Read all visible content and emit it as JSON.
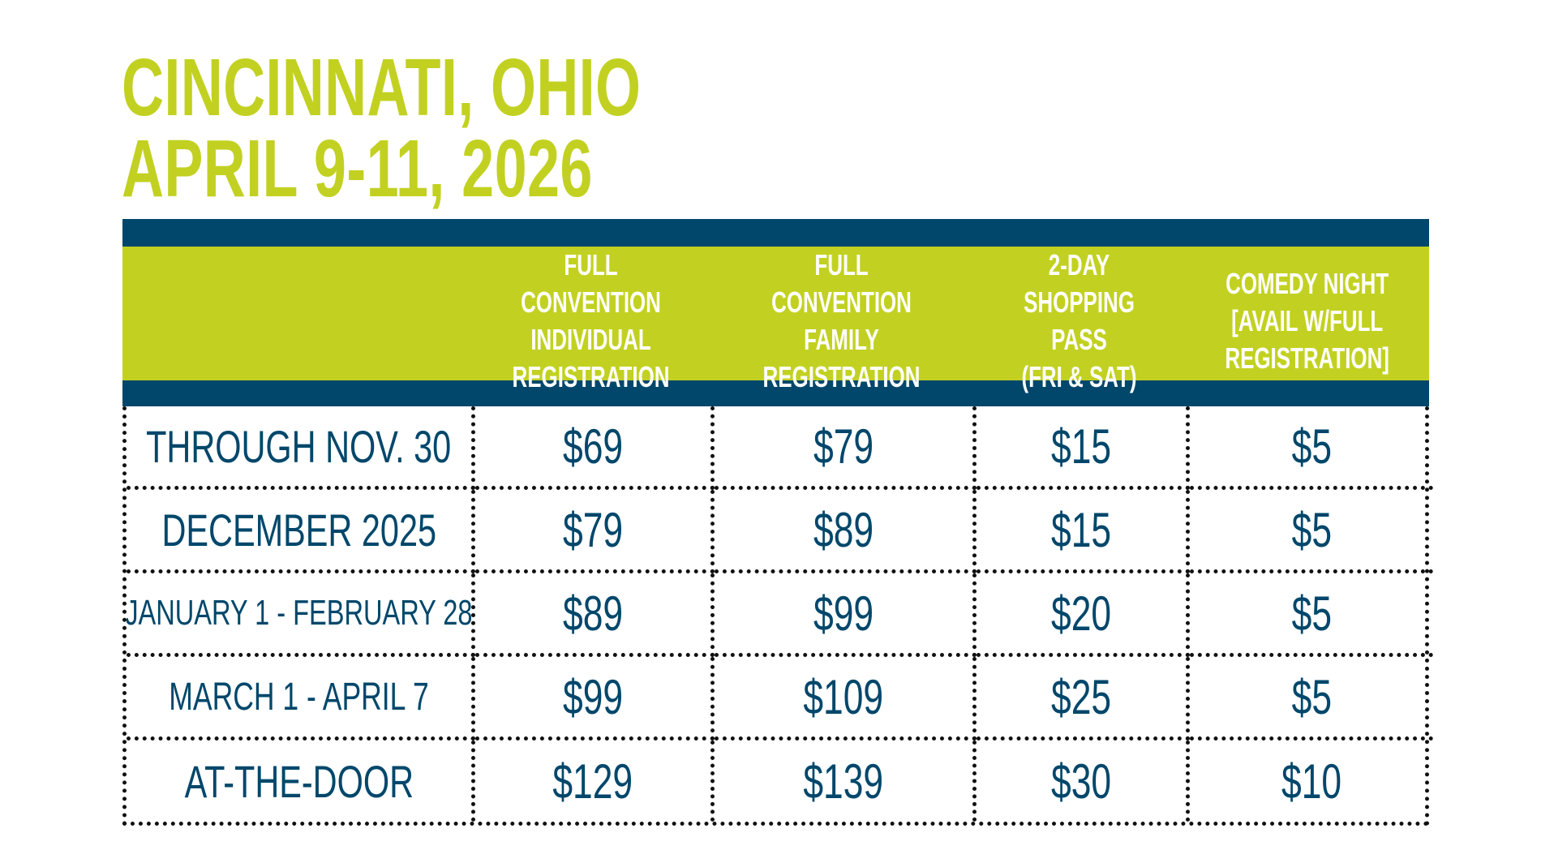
{
  "title": {
    "line1": "CINCINNATI, OHIO",
    "line2": "APRIL 9-11, 2026"
  },
  "colors": {
    "accent_green": "#c2d121",
    "navy": "#00476b",
    "text_navy": "#00476b",
    "border": "#111111"
  },
  "table": {
    "headers": [
      "",
      "FULL CONVENTION\nINDIVIDUAL\nREGISTRATION",
      "FULL CONVENTION\nFAMILY\nREGISTRATION",
      "2-DAY\nSHOPPING PASS\n(FRI & SAT)",
      "COMEDY NIGHT\n[AVAIL W/FULL\nREGISTRATION]"
    ],
    "rows": [
      {
        "period": "THROUGH NOV. 30",
        "individual": "$69",
        "family": "$79",
        "shopping": "$15",
        "comedy": "$5"
      },
      {
        "period": "DECEMBER 2025",
        "individual": "$79",
        "family": "$89",
        "shopping": "$15",
        "comedy": "$5"
      },
      {
        "period": "JANUARY 1 - FEBRUARY 28",
        "individual": "$89",
        "family": "$99",
        "shopping": "$20",
        "comedy": "$5"
      },
      {
        "period": "MARCH 1 - APRIL 7",
        "individual": "$99",
        "family": "$109",
        "shopping": "$25",
        "comedy": "$5"
      },
      {
        "period": "AT-THE-DOOR",
        "individual": "$129",
        "family": "$139",
        "shopping": "$30",
        "comedy": "$10"
      }
    ]
  }
}
